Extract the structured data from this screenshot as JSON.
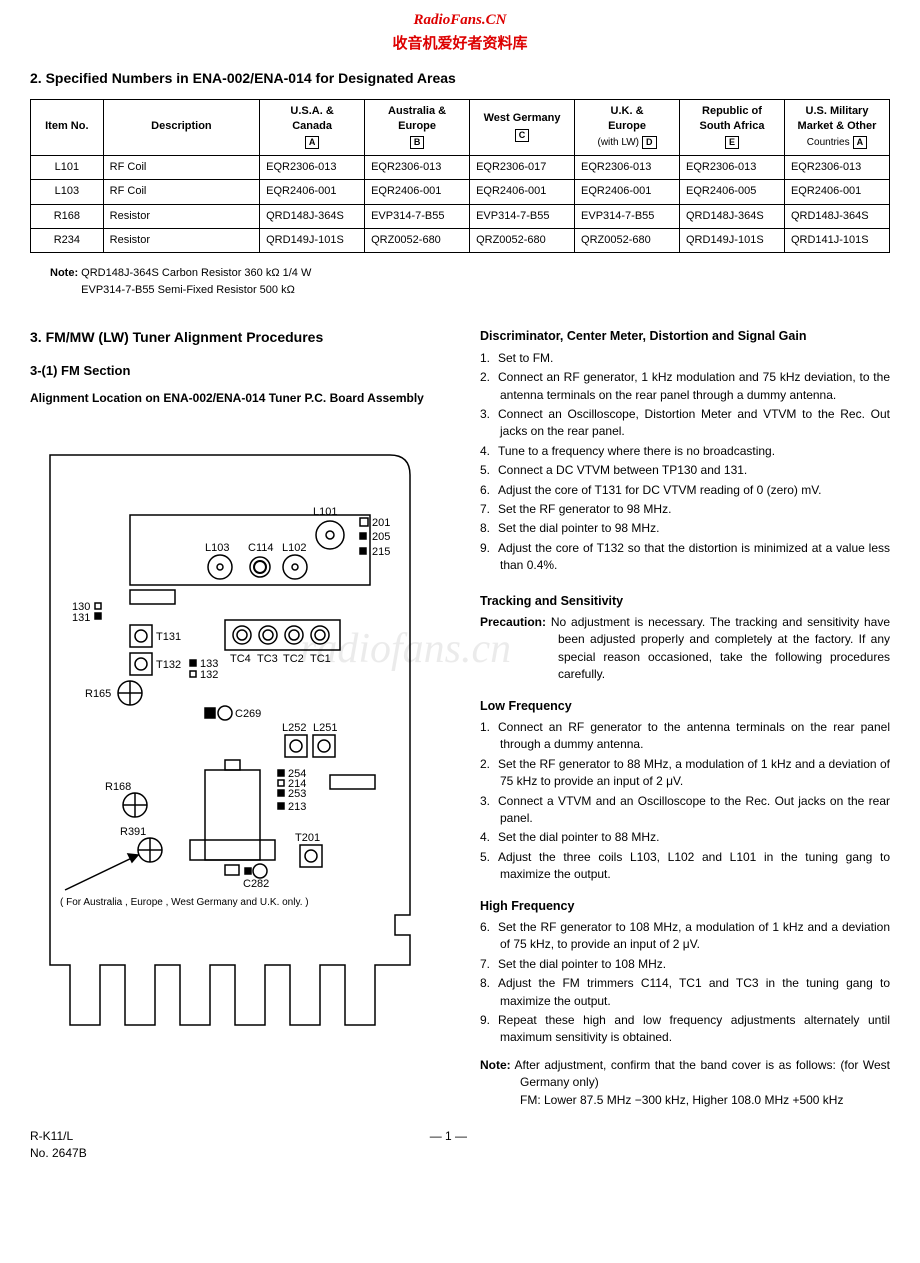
{
  "banner": {
    "english": "RadioFans.CN",
    "chinese": "收音机爱好者资料库"
  },
  "watermark": "radiofans.cn",
  "section2": {
    "title": "2.  Specified Numbers in ENA-002/ENA-014 for Designated Areas",
    "columns": [
      {
        "h1": "Item No.",
        "h2": ""
      },
      {
        "h1": "Description",
        "h2": ""
      },
      {
        "h1": "U.S.A. &",
        "h2": "Canada",
        "box": "A"
      },
      {
        "h1": "Australia &",
        "h2": "Europe",
        "box": "B"
      },
      {
        "h1": "West Germany",
        "h2": "",
        "box": "C"
      },
      {
        "h1": "U.K. &",
        "h2": "Europe",
        "h3": "(with LW)",
        "box": "D"
      },
      {
        "h1": "Republic of",
        "h2": "South Africa",
        "box": "E"
      },
      {
        "h1": "U.S. Military",
        "h2": "Market & Other",
        "h3": "Countries",
        "box": "A"
      }
    ],
    "rows": [
      [
        "L101",
        "RF Coil",
        "EQR2306-013",
        "EQR2306-013",
        "EQR2306-017",
        "EQR2306-013",
        "EQR2306-013",
        "EQR2306-013"
      ],
      [
        "L103",
        "RF Coil",
        "EQR2406-001",
        "EQR2406-001",
        "EQR2406-001",
        "EQR2406-001",
        "EQR2406-005",
        "EQR2406-001"
      ],
      [
        "R168",
        "Resistor",
        "QRD148J-364S",
        "EVP314-7-B55",
        "EVP314-7-B55",
        "EVP314-7-B55",
        "QRD148J-364S",
        "QRD148J-364S"
      ],
      [
        "R234",
        "Resistor",
        "QRD149J-101S",
        "QRZ0052-680",
        "QRZ0052-680",
        "QRZ0052-680",
        "QRD149J-101S",
        "QRD141J-101S"
      ]
    ],
    "note_label": "Note:",
    "note1": "QRD148J-364S  Carbon Resistor 360 kΩ  1/4 W",
    "note2": "EVP314-7-B55   Semi-Fixed Resistor  500 kΩ"
  },
  "section3": {
    "title": "3.  FM/MW (LW)  Tuner Alignment Procedures",
    "sub": "3-(1)  FM Section",
    "board_desc": "Alignment Location on ENA-002/ENA-014 Tuner P.C. Board Assembly"
  },
  "diagram_labels": {
    "L101": "L101",
    "L102": "L102",
    "L103": "L103",
    "C114": "C114",
    "n201": "201",
    "n205": "205",
    "n215": "215",
    "n130": "130",
    "n131": "131",
    "T131": "T131",
    "T132": "T132",
    "n133": "133",
    "n132": "132",
    "R165": "R165",
    "C269": "C269",
    "TC4": "TC4",
    "TC3": "TC3",
    "TC2": "TC2",
    "TC1": "TC1",
    "L252": "L252",
    "L251": "L251",
    "n254": "254",
    "n214": "214",
    "n253": "253",
    "n213": "213",
    "R168": "R168",
    "R391": "R391",
    "T201": "T201",
    "C282": "C282",
    "footnote": "( For Australia , Europe , West Germany  and  U.K. only. )"
  },
  "procedures": {
    "disc": {
      "heading": "Discriminator, Center Meter, Distortion and Signal Gain",
      "items": [
        "Set to FM.",
        "Connect an RF generator, 1 kHz modulation and 75 kHz deviation, to the antenna terminals on the rear panel through a dummy antenna.",
        "Connect an Oscilloscope, Distortion Meter and VTVM to the Rec. Out jacks on the rear panel.",
        "Tune to a frequency where there is no broadcasting.",
        "Connect a DC VTVM between TP130 and 131.",
        "Adjust the core of T131 for DC VTVM reading of 0 (zero) mV.",
        "Set the RF generator to 98 MHz.",
        "Set the dial pointer to 98 MHz.",
        "Adjust the core of T132 so that the distortion is minimized at a value less than 0.4%."
      ]
    },
    "tracking": {
      "heading": "Tracking and Sensitivity",
      "precaution_label": "Precaution:",
      "precaution_text": "No adjustment is necessary. The tracking and sensitivity have been adjusted properly and completely at the factory. If any special reason occasioned, take the following procedures carefully."
    },
    "low": {
      "heading": "Low Frequency",
      "items": [
        "Connect an RF generator to the antenna terminals on the rear panel through a dummy antenna.",
        "Set the RF generator to 88 MHz, a modulation of 1 kHz and a deviation of 75 kHz to provide an input of 2 μV.",
        "Connect a VTVM and an Oscilloscope to the Rec. Out jacks on the rear panel.",
        "Set the dial pointer to 88 MHz.",
        "Adjust the three coils L103, L102 and L101 in the tuning gang to maximize the output."
      ]
    },
    "high": {
      "heading": "High Frequency",
      "start": 6,
      "items": [
        "Set the RF generator to 108 MHz, a modulation of 1 kHz and a deviation of 75 kHz, to provide an input of 2 μV.",
        "Set the dial pointer to 108 MHz.",
        "Adjust the FM trimmers C114, TC1 and TC3 in the tuning gang to maximize the output.",
        "Repeat these high and low frequency adjustments alternately until maximum sensitivity is obtained."
      ],
      "note_label": "Note:",
      "note_text": "After adjustment, confirm that the band cover is as follows: (for West Germany only)",
      "note_sub1": "FM: Lower 87.5 MHz −300 kHz, Higher 108.0 MHz +500 kHz"
    }
  },
  "footer": {
    "model": "R-K11/L",
    "docno": "No. 2647B",
    "page": "— 1 —"
  }
}
